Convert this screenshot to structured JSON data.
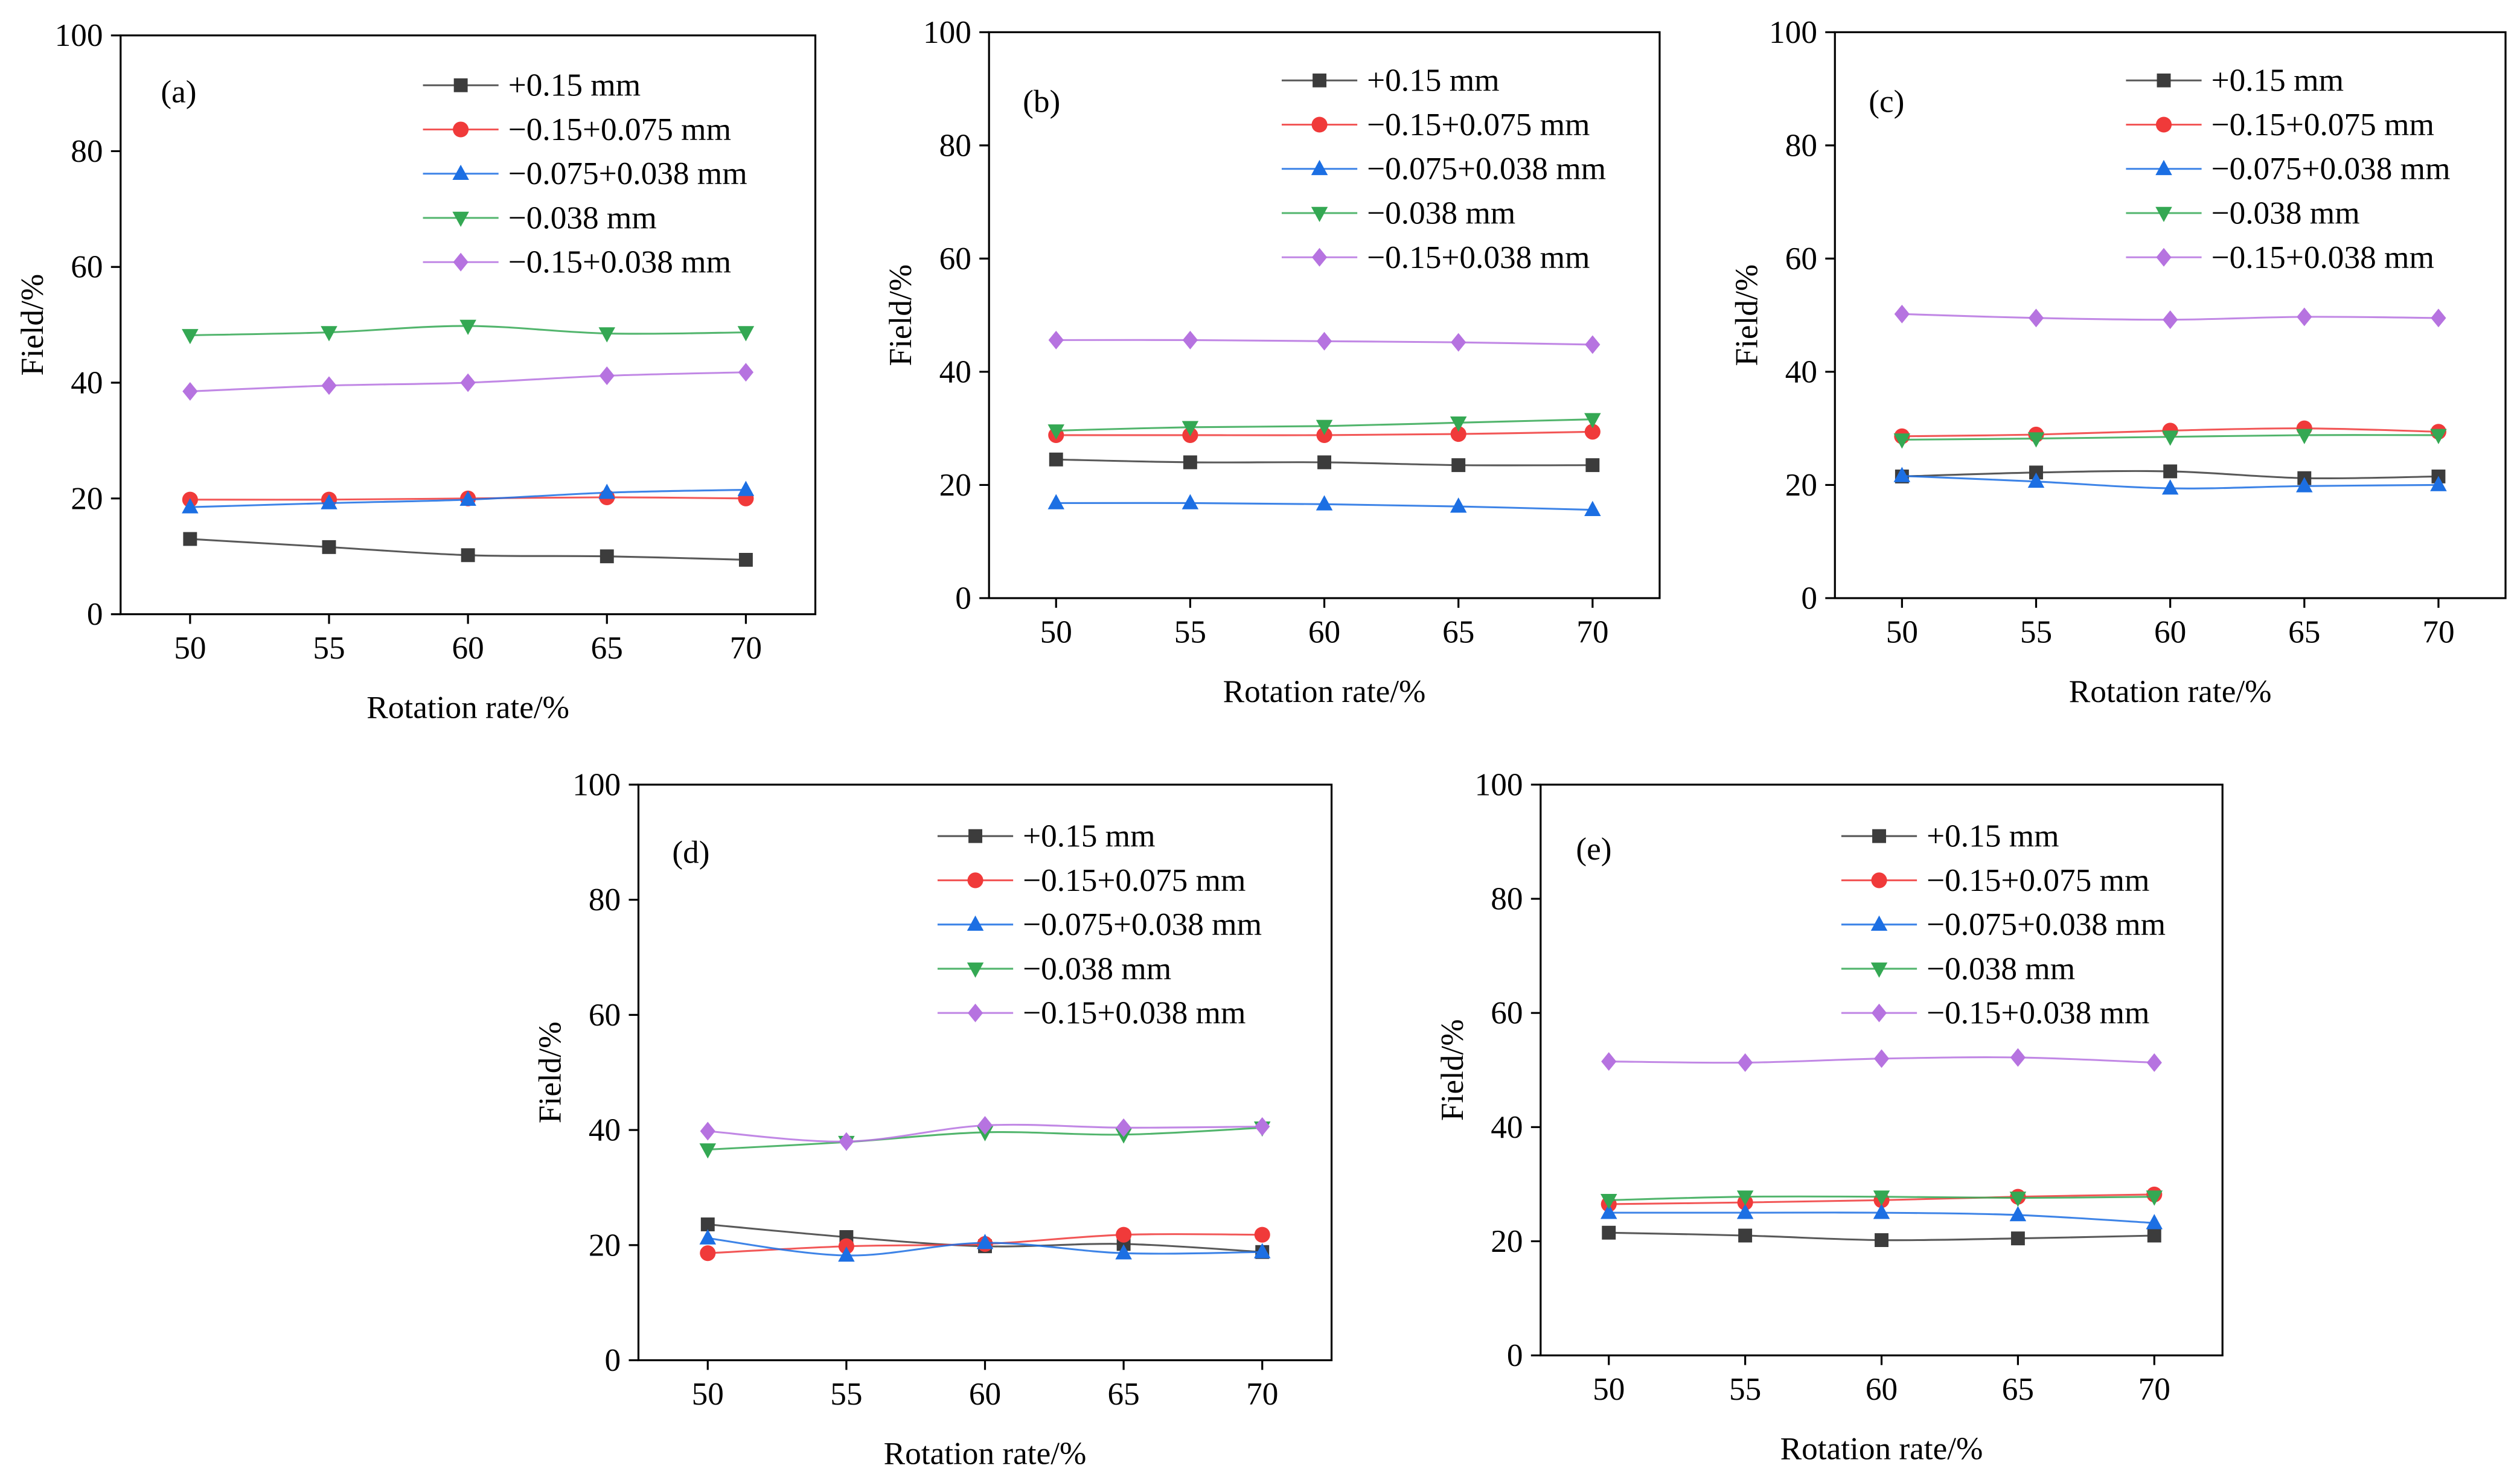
{
  "chart_data": [
    {
      "type": "line",
      "panel_label": "(a)",
      "xlabel": "Rotation rate/%",
      "ylabel": "Field/%",
      "x": [
        50,
        55,
        60,
        65,
        70
      ],
      "xlim": [
        47.5,
        72.5
      ],
      "ylim": [
        0,
        100
      ],
      "yticks": [
        0,
        20,
        40,
        60,
        80,
        100
      ],
      "series": [
        {
          "name": "+0.15 mm",
          "marker": "square",
          "color": "#3c3c3c",
          "values": [
            13.0,
            11.6,
            10.2,
            10.0,
            9.4
          ]
        },
        {
          "name": "−0.15+0.075 mm",
          "marker": "circle",
          "color": "#f03a3a",
          "values": [
            19.8,
            19.8,
            20.0,
            20.2,
            20.0
          ]
        },
        {
          "name": "−0.075+0.038 mm",
          "marker": "triangle-up",
          "color": "#1c6fe3",
          "values": [
            18.5,
            19.2,
            19.8,
            21.0,
            21.5
          ]
        },
        {
          "name": "−0.038 mm",
          "marker": "triangle-down",
          "color": "#34a853",
          "values": [
            48.2,
            48.7,
            49.8,
            48.5,
            48.7
          ]
        },
        {
          "name": "−0.15+0.038 mm",
          "marker": "diamond",
          "color": "#b673e0",
          "values": [
            38.5,
            39.5,
            40.0,
            41.2,
            41.8
          ]
        }
      ]
    },
    {
      "type": "line",
      "panel_label": "(b)",
      "xlabel": "Rotation rate/%",
      "ylabel": "Field/%",
      "x": [
        50,
        55,
        60,
        65,
        70
      ],
      "xlim": [
        47.5,
        72.5
      ],
      "ylim": [
        0,
        100
      ],
      "yticks": [
        0,
        20,
        40,
        60,
        80,
        100
      ],
      "series": [
        {
          "name": "+0.15 mm",
          "marker": "square",
          "color": "#3c3c3c",
          "values": [
            24.5,
            24.0,
            24.0,
            23.5,
            23.5
          ]
        },
        {
          "name": "−0.15+0.075 mm",
          "marker": "circle",
          "color": "#f03a3a",
          "values": [
            28.8,
            28.8,
            28.8,
            29.0,
            29.4
          ]
        },
        {
          "name": "−0.075+0.038 mm",
          "marker": "triangle-up",
          "color": "#1c6fe3",
          "values": [
            16.8,
            16.8,
            16.6,
            16.2,
            15.6
          ]
        },
        {
          "name": "−0.038 mm",
          "marker": "triangle-down",
          "color": "#34a853",
          "values": [
            29.6,
            30.2,
            30.4,
            31.0,
            31.6
          ]
        },
        {
          "name": "−0.15+0.038 mm",
          "marker": "diamond",
          "color": "#b673e0",
          "values": [
            45.6,
            45.6,
            45.4,
            45.2,
            44.8
          ]
        }
      ]
    },
    {
      "type": "line",
      "panel_label": "(c)",
      "xlabel": "Rotation rate/%",
      "ylabel": "Field/%",
      "x": [
        50,
        55,
        60,
        65,
        70
      ],
      "xlim": [
        47.5,
        72.5
      ],
      "ylim": [
        0,
        100
      ],
      "yticks": [
        0,
        20,
        40,
        60,
        80,
        100
      ],
      "series": [
        {
          "name": "+0.15 mm",
          "marker": "square",
          "color": "#3c3c3c",
          "values": [
            21.5,
            22.2,
            22.4,
            21.2,
            21.5
          ]
        },
        {
          "name": "−0.15+0.075 mm",
          "marker": "circle",
          "color": "#f03a3a",
          "values": [
            28.6,
            28.9,
            29.6,
            30.0,
            29.4
          ]
        },
        {
          "name": "−0.075+0.038 mm",
          "marker": "triangle-up",
          "color": "#1c6fe3",
          "values": [
            21.6,
            20.6,
            19.4,
            19.8,
            20.0
          ]
        },
        {
          "name": "−0.038 mm",
          "marker": "triangle-down",
          "color": "#34a853",
          "values": [
            28.0,
            28.2,
            28.5,
            28.8,
            28.8
          ]
        },
        {
          "name": "−0.15+0.038 mm",
          "marker": "diamond",
          "color": "#b673e0",
          "values": [
            50.2,
            49.5,
            49.2,
            49.7,
            49.5
          ]
        }
      ]
    },
    {
      "type": "line",
      "panel_label": "(d)",
      "xlabel": "Rotation rate/%",
      "ylabel": "Field/%",
      "x": [
        50,
        55,
        60,
        65,
        70
      ],
      "xlim": [
        47.5,
        72.5
      ],
      "ylim": [
        0,
        100
      ],
      "yticks": [
        0,
        20,
        40,
        60,
        80,
        100
      ],
      "series": [
        {
          "name": "+0.15 mm",
          "marker": "square",
          "color": "#3c3c3c",
          "values": [
            23.6,
            21.4,
            19.8,
            20.2,
            18.8
          ]
        },
        {
          "name": "−0.15+0.075 mm",
          "marker": "circle",
          "color": "#f03a3a",
          "values": [
            18.6,
            19.8,
            20.2,
            21.8,
            21.8
          ]
        },
        {
          "name": "−0.075+0.038 mm",
          "marker": "triangle-up",
          "color": "#1c6fe3",
          "values": [
            21.2,
            18.2,
            20.4,
            18.6,
            18.8
          ]
        },
        {
          "name": "−0.038 mm",
          "marker": "triangle-down",
          "color": "#34a853",
          "values": [
            36.6,
            37.9,
            39.6,
            39.2,
            40.4
          ]
        },
        {
          "name": "−0.15+0.038 mm",
          "marker": "diamond",
          "color": "#b673e0",
          "values": [
            39.8,
            38.0,
            40.8,
            40.4,
            40.6
          ]
        }
      ]
    },
    {
      "type": "line",
      "panel_label": "(e)",
      "xlabel": "Rotation rate/%",
      "ylabel": "Field/%",
      "x": [
        50,
        55,
        60,
        65,
        70
      ],
      "xlim": [
        47.5,
        72.5
      ],
      "ylim": [
        0,
        100
      ],
      "yticks": [
        0,
        20,
        40,
        60,
        80,
        100
      ],
      "series": [
        {
          "name": "+0.15 mm",
          "marker": "square",
          "color": "#3c3c3c",
          "values": [
            21.5,
            21.0,
            20.2,
            20.5,
            21.0
          ]
        },
        {
          "name": "−0.15+0.075 mm",
          "marker": "circle",
          "color": "#f03a3a",
          "values": [
            26.5,
            26.8,
            27.2,
            27.8,
            28.2
          ]
        },
        {
          "name": "−0.075+0.038 mm",
          "marker": "triangle-up",
          "color": "#1c6fe3",
          "values": [
            25.0,
            25.0,
            25.0,
            24.6,
            23.2
          ]
        },
        {
          "name": "−0.038 mm",
          "marker": "triangle-down",
          "color": "#34a853",
          "values": [
            27.2,
            27.8,
            27.8,
            27.6,
            27.8
          ]
        },
        {
          "name": "−0.15+0.038 mm",
          "marker": "diamond",
          "color": "#b673e0",
          "values": [
            51.5,
            51.3,
            52.0,
            52.2,
            51.3
          ]
        }
      ]
    }
  ]
}
